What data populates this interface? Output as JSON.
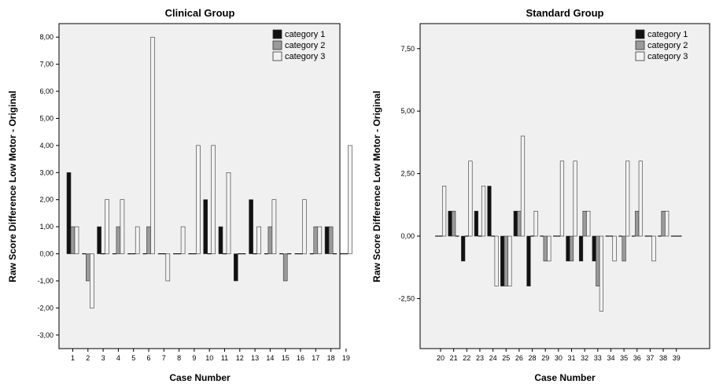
{
  "chart_data": [
    {
      "type": "bar",
      "title": "Clinical Group",
      "xlabel": "Case Number",
      "ylabel": "Raw Score Difference Low Motor - Original",
      "categories": [
        "1",
        "2",
        "3",
        "4",
        "5",
        "6",
        "7",
        "8",
        "9",
        "10",
        "11",
        "12",
        "13",
        "14",
        "15",
        "16",
        "17",
        "18",
        "19"
      ],
      "series": [
        {
          "name": "category 1",
          "values": [
            3,
            0,
            1,
            0,
            0,
            0,
            0,
            0,
            0,
            2,
            1,
            -1,
            2,
            0,
            0,
            0,
            0,
            1,
            0
          ]
        },
        {
          "name": "category 2",
          "values": [
            1,
            -1,
            0,
            1,
            0,
            1,
            0,
            0,
            0,
            0,
            0,
            0,
            0,
            1,
            -1,
            0,
            1,
            1,
            0
          ]
        },
        {
          "name": "category 3",
          "values": [
            1,
            -2,
            2,
            2,
            1,
            8,
            -1,
            1,
            4,
            4,
            3,
            0,
            1,
            2,
            0,
            2,
            1,
            0,
            4
          ]
        }
      ],
      "ylim": [
        -3.5,
        8.5
      ],
      "yticks": [
        -3,
        -2,
        -1,
        0,
        1,
        2,
        3,
        4,
        5,
        6,
        7,
        8
      ],
      "ytick_labels": [
        "-3,00",
        "-2,00",
        "-1,00",
        "0,00",
        "1,00",
        "2,00",
        "3,00",
        "4,00",
        "5,00",
        "6,00",
        "7,00",
        "8,00"
      ],
      "legend": "top-right",
      "grid": false
    },
    {
      "type": "bar",
      "title": "Standard Group",
      "xlabel": "Case Number",
      "ylabel": "Raw Score Difference Low Motor - Original",
      "categories": [
        "20",
        "21",
        "22",
        "23",
        "24",
        "25",
        "26",
        "28",
        "29",
        "30",
        "31",
        "32",
        "33",
        "34",
        "35",
        "36",
        "37",
        "38",
        "39"
      ],
      "series": [
        {
          "name": "category 1",
          "values": [
            0,
            1,
            -1,
            1,
            2,
            -2,
            1,
            -2,
            0,
            0,
            -1,
            -1,
            -1,
            0,
            0,
            0,
            0,
            0,
            0
          ]
        },
        {
          "name": "category 2",
          "values": [
            0,
            1,
            0,
            0,
            0,
            -2,
            1,
            0,
            -1,
            0,
            -1,
            1,
            -2,
            0,
            -1,
            1,
            0,
            1,
            0
          ]
        },
        {
          "name": "category 3",
          "values": [
            2,
            0,
            3,
            2,
            -2,
            -2,
            4,
            1,
            -1,
            3,
            3,
            1,
            -3,
            -1,
            3,
            3,
            -1,
            1,
            0
          ]
        }
      ],
      "ylim": [
        -4.5,
        8.5
      ],
      "yticks": [
        -2.5,
        0,
        2.5,
        5,
        7.5
      ],
      "ytick_labels": [
        "-2,50",
        "0,00",
        "2,50",
        "5,00",
        "7,50"
      ],
      "legend": "top-right",
      "grid": false
    }
  ],
  "colors": {
    "panel_background": "#f0f0f0",
    "series": [
      "#111111",
      "#9a9a9a",
      "#f2f2f2"
    ],
    "bar_stroke": "#333333"
  }
}
